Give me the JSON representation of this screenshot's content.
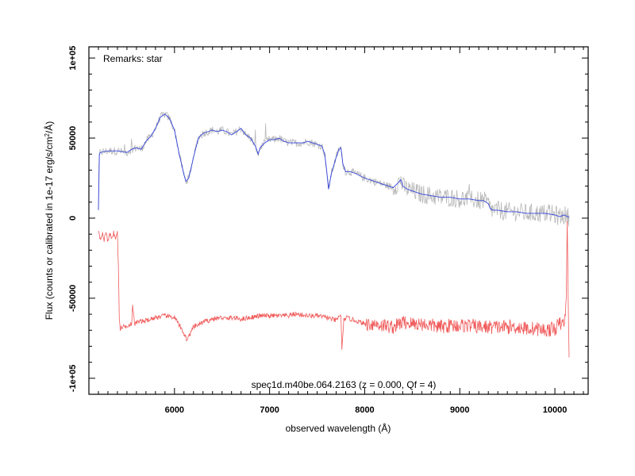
{
  "chart_data": {
    "type": "line",
    "title": "",
    "xlabel": "observed wavelength (Å)",
    "ylabel": "Flux (counts or calibrated in 1e-17 erg/s/cm²/Å)",
    "ylabel_parts": {
      "pre": "Flux (counts or calibrated in 1e-17 erg/s/cm",
      "sup": "2",
      "post": "/Å)"
    },
    "xlim": [
      5100,
      10350
    ],
    "ylim": [
      -110000,
      107000
    ],
    "x_ticks": [
      6000,
      7000,
      8000,
      9000,
      10000
    ],
    "x_tick_labels": [
      "6000",
      "7000",
      "8000",
      "9000",
      "10000"
    ],
    "y_ticks": [
      -100000,
      -50000,
      0,
      50000,
      100000
    ],
    "y_tick_labels": [
      "-1e+05",
      "-50000",
      "0",
      "50000",
      "1e+05"
    ],
    "grid": false,
    "annotations": {
      "remarks": "Remarks: star",
      "spec_id": "spec1d.m40be.064.2163 (z = 0.000, Qf = 4)"
    },
    "colors": {
      "raw": "#b8b8b8",
      "smoothed": "#3344dd",
      "error": "#f05a5a"
    },
    "series": [
      {
        "role": "smoothed flux",
        "x": [
          5200,
          5210,
          5220,
          5300,
          5400,
          5500,
          5550,
          5600,
          5650,
          5700,
          5750,
          5800,
          5850,
          5900,
          5950,
          6000,
          6050,
          6100,
          6120,
          6150,
          6200,
          6250,
          6300,
          6350,
          6400,
          6450,
          6500,
          6550,
          6600,
          6650,
          6700,
          6750,
          6800,
          6850,
          6880,
          6900,
          6950,
          7000,
          7050,
          7100,
          7150,
          7200,
          7250,
          7300,
          7350,
          7400,
          7450,
          7500,
          7550,
          7580,
          7600,
          7620,
          7650,
          7700,
          7730,
          7750,
          7770,
          7800,
          7850,
          7900,
          8000,
          8100,
          8200,
          8300,
          8350,
          8380,
          8400,
          8450,
          8500,
          8550,
          8600,
          8700,
          8800,
          8900,
          9000,
          9100,
          9200,
          9250,
          9300,
          9320,
          9350,
          9400,
          9500,
          9600,
          9700,
          9800,
          9900,
          10000,
          10050,
          10100,
          10130,
          10150
        ],
        "y": [
          5000,
          40000,
          41000,
          42000,
          42000,
          41000,
          43000,
          44000,
          43000,
          48000,
          51000,
          56000,
          63000,
          65000,
          62000,
          55000,
          40000,
          27000,
          23000,
          25000,
          38000,
          50000,
          53000,
          54000,
          55000,
          54000,
          55000,
          54000,
          52000,
          54000,
          56000,
          52000,
          50000,
          45000,
          40000,
          44000,
          47000,
          49000,
          49000,
          50000,
          48000,
          47000,
          47000,
          47000,
          47000,
          48000,
          47000,
          46000,
          45000,
          40000,
          30000,
          18000,
          28000,
          38000,
          43000,
          44000,
          34000,
          29000,
          29000,
          28000,
          25000,
          23000,
          21000,
          19000,
          22000,
          24000,
          20000,
          18000,
          17000,
          16000,
          15000,
          14000,
          13000,
          13000,
          12000,
          12000,
          11000,
          11000,
          9000,
          6000,
          5000,
          5000,
          4000,
          4000,
          3000,
          3000,
          3000,
          2000,
          1000,
          2000,
          1000,
          500
        ]
      },
      {
        "role": "error",
        "x": [
          5200,
          5220,
          5240,
          5260,
          5280,
          5300,
          5320,
          5340,
          5360,
          5380,
          5400,
          5410,
          5420,
          5430,
          5450,
          5500,
          5550,
          5560,
          5580,
          5600,
          5700,
          5800,
          5900,
          6000,
          6050,
          6100,
          6130,
          6150,
          6200,
          6300,
          6400,
          6500,
          6550,
          6600,
          6700,
          6800,
          6900,
          7000,
          7100,
          7200,
          7250,
          7300,
          7400,
          7500,
          7600,
          7700,
          7750,
          7760,
          7780,
          7800,
          7900,
          8000,
          8100,
          8200,
          8300,
          8400,
          8500,
          8600,
          8700,
          8800,
          8900,
          9000,
          9100,
          9200,
          9300,
          9400,
          9500,
          9600,
          9700,
          9800,
          9900,
          10000,
          10050,
          10100,
          10120,
          10130,
          10150
        ],
        "y": [
          -7000,
          -13000,
          -9000,
          -14000,
          -8000,
          -15000,
          -10000,
          -12000,
          -9000,
          -13000,
          -9000,
          -30000,
          -63000,
          -69000,
          -68000,
          -67000,
          -66000,
          -55000,
          -66000,
          -65000,
          -64000,
          -62000,
          -61000,
          -62000,
          -67000,
          -72000,
          -76000,
          -74000,
          -68000,
          -65000,
          -63000,
          -62000,
          -63000,
          -62000,
          -63000,
          -62000,
          -61000,
          -61000,
          -61000,
          -61000,
          -60000,
          -60000,
          -61000,
          -61000,
          -62000,
          -64000,
          -60000,
          -83000,
          -64000,
          -62000,
          -64000,
          -66000,
          -66000,
          -67000,
          -68000,
          -65000,
          -66000,
          -66000,
          -67000,
          -68000,
          -67000,
          -67000,
          -67000,
          -68000,
          -68000,
          -68000,
          -68000,
          -68000,
          -69000,
          -69000,
          -70000,
          -69000,
          -66000,
          -66000,
          -50000,
          -5000,
          -85000
        ]
      }
    ]
  }
}
